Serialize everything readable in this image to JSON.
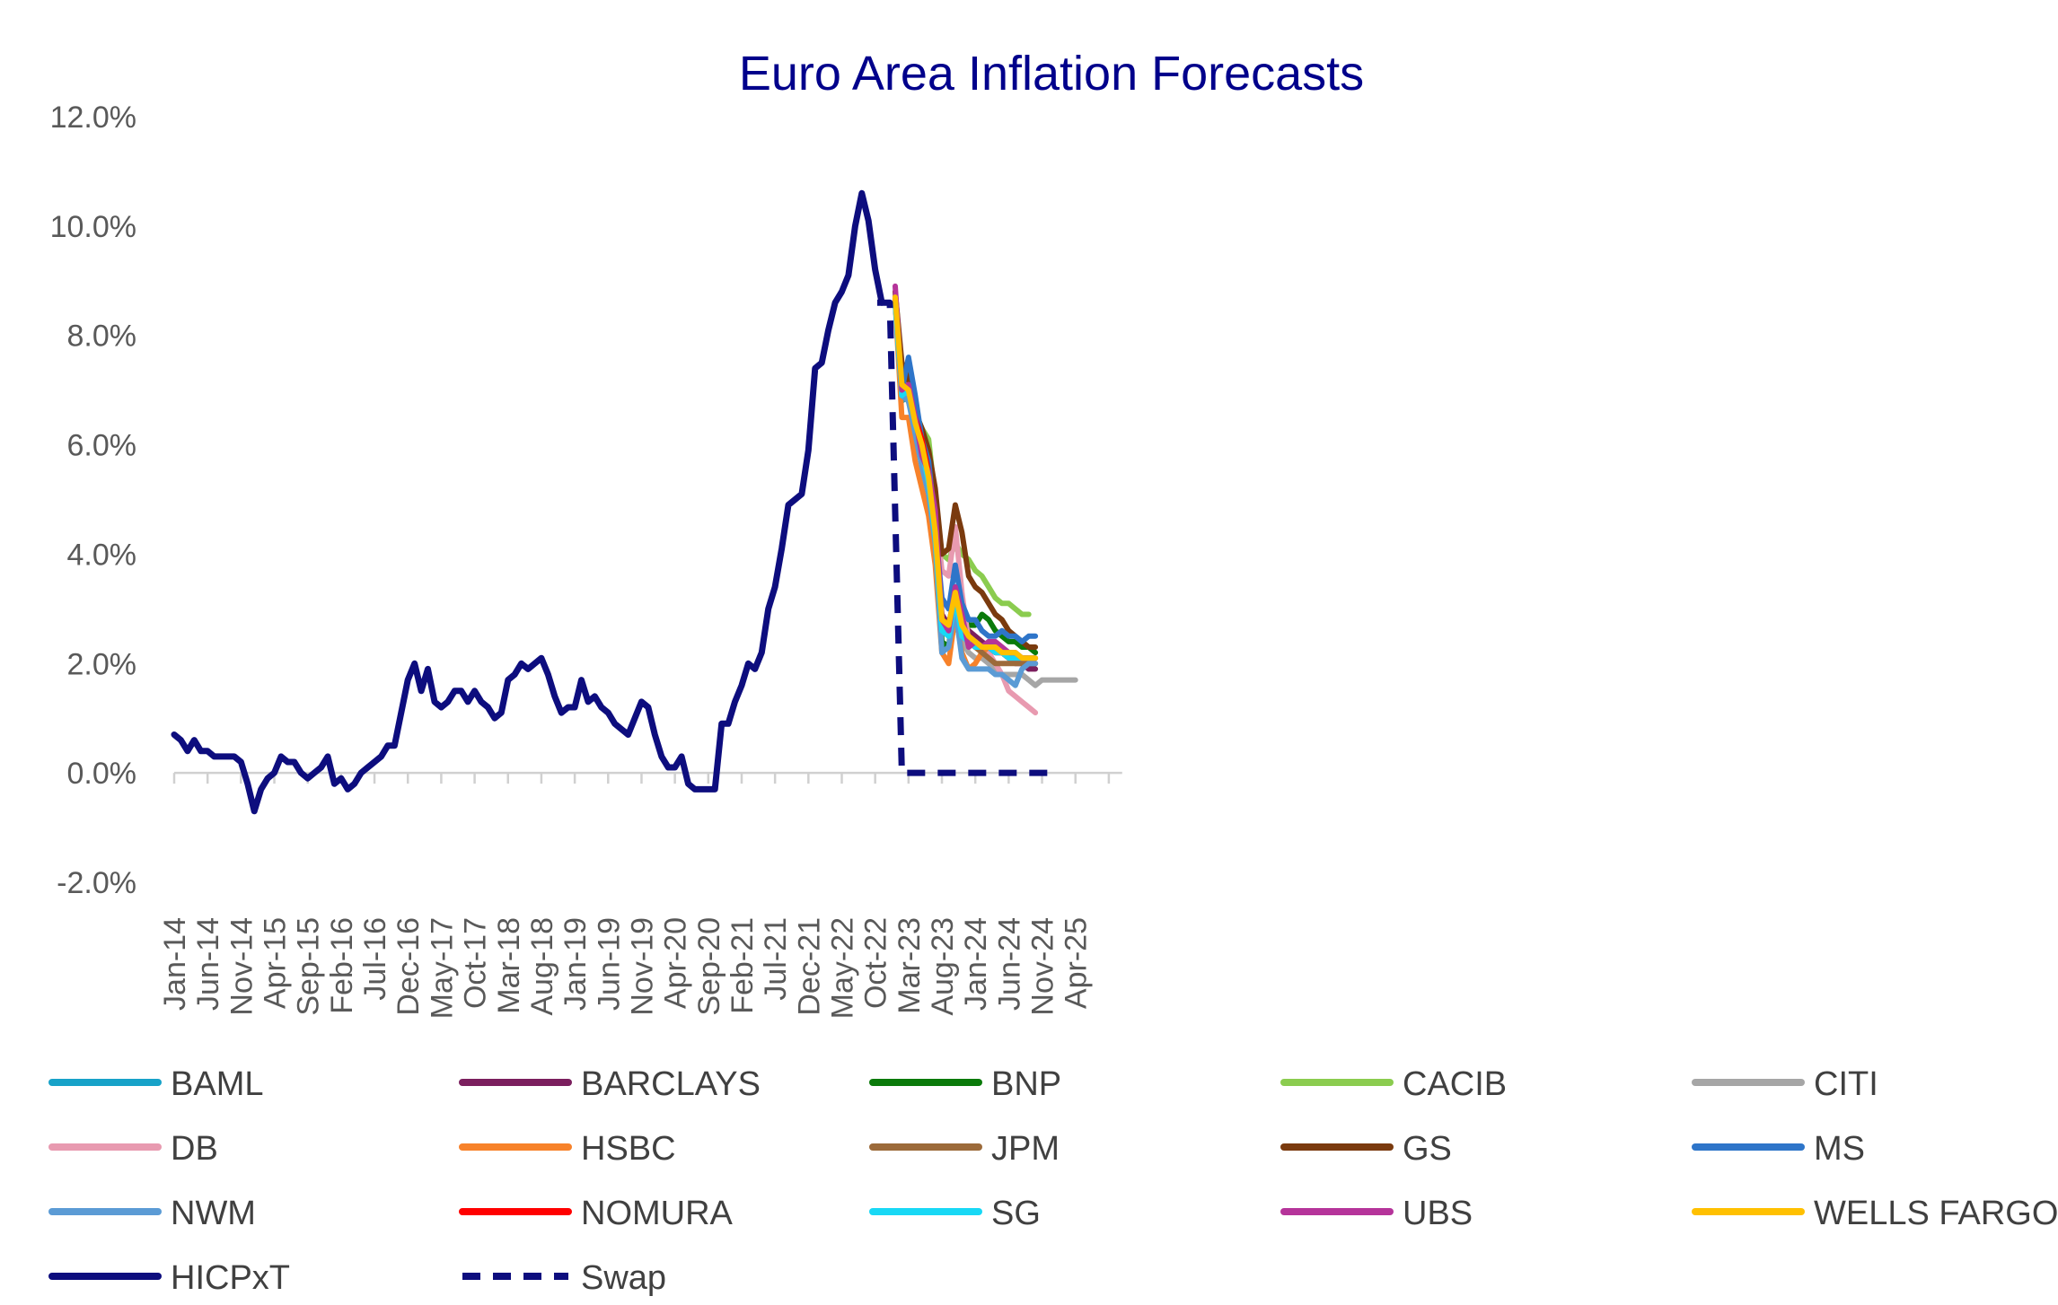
{
  "chart_data": {
    "type": "line",
    "title": "Euro Area Inflation Forecasts",
    "xlabel": "",
    "ylabel": "",
    "ylim": [
      -2.0,
      12.0
    ],
    "ytick_values": [
      -2,
      0,
      2,
      4,
      6,
      8,
      10,
      12
    ],
    "ytick_labels": [
      "-2.0%",
      "0.0%",
      "2.0%",
      "4.0%",
      "6.0%",
      "8.0%",
      "10.0%",
      "12.0%"
    ],
    "x_start": "Jan-14",
    "x_tick_labels": [
      "Jan-14",
      "Jun-14",
      "Nov-14",
      "Apr-15",
      "Sep-15",
      "Feb-16",
      "Jul-16",
      "Dec-16",
      "May-17",
      "Oct-17",
      "Mar-18",
      "Aug-18",
      "Jan-19",
      "Jun-19",
      "Nov-19",
      "Apr-20",
      "Sep-20",
      "Feb-21",
      "Jul-21",
      "Dec-21",
      "May-22",
      "Oct-22",
      "Mar-23",
      "Aug-23",
      "Jan-24",
      "Jun-24",
      "Nov-24",
      "Apr-25"
    ],
    "grid": false,
    "legend_position": "bottom",
    "series": [
      {
        "name": "BAML",
        "color": "#17a2c8",
        "style": "solid",
        "start": "Jan-23",
        "values": [
          8.6,
          6.8,
          6.9,
          6.4,
          5.9,
          5.3,
          4.4,
          2.8,
          2.5,
          3.4,
          2.6,
          2.4,
          2.3,
          2.3,
          2.4,
          2.3,
          2.2,
          2.1,
          2.1,
          2.0,
          1.9,
          2.0
        ]
      },
      {
        "name": "BARCLAYS",
        "color": "#7b1f5e",
        "style": "solid",
        "start": "Jan-23",
        "values": [
          8.7,
          7.1,
          7.0,
          6.4,
          6.0,
          5.4,
          4.3,
          2.9,
          2.7,
          3.3,
          2.7,
          2.6,
          2.5,
          2.4,
          2.3,
          2.2,
          2.2,
          2.1,
          2.0,
          2.0,
          1.9,
          1.9
        ]
      },
      {
        "name": "BNP",
        "color": "#0a7a0a",
        "style": "solid",
        "start": "Jan-23",
        "values": [
          8.6,
          6.9,
          6.8,
          6.3,
          5.8,
          5.3,
          4.2,
          2.4,
          2.3,
          3.2,
          2.8,
          2.7,
          2.7,
          2.9,
          2.8,
          2.6,
          2.5,
          2.4,
          2.4,
          2.3,
          2.3,
          2.2
        ]
      },
      {
        "name": "CACIB",
        "color": "#8bcc4f",
        "style": "solid",
        "start": "Jan-23",
        "values": [
          8.8,
          7.4,
          7.3,
          6.6,
          6.3,
          6.1,
          5.0,
          4.0,
          3.9,
          4.2,
          4.0,
          3.9,
          3.7,
          3.6,
          3.4,
          3.2,
          3.1,
          3.1,
          3.0,
          2.9,
          2.9
        ]
      },
      {
        "name": "CITI",
        "color": "#a6a6a6",
        "style": "solid",
        "start": "Jan-23",
        "values": [
          8.6,
          6.9,
          6.9,
          6.3,
          5.8,
          5.2,
          4.3,
          2.6,
          2.5,
          3.1,
          2.4,
          2.2,
          2.1,
          2.1,
          2.0,
          1.9,
          1.8,
          1.8,
          1.8,
          1.8,
          1.7,
          1.6,
          1.7,
          1.7,
          1.7,
          1.7,
          1.7,
          1.7
        ]
      },
      {
        "name": "DB",
        "color": "#e89ab0",
        "style": "solid",
        "start": "Jan-23",
        "values": [
          8.7,
          7.2,
          7.1,
          6.5,
          6.2,
          5.6,
          4.8,
          3.7,
          3.6,
          4.5,
          3.3,
          2.4,
          2.4,
          2.3,
          2.2,
          2.0,
          1.8,
          1.5,
          1.4,
          1.3,
          1.2,
          1.1
        ]
      },
      {
        "name": "HSBC",
        "color": "#f7822a",
        "style": "solid",
        "start": "Jan-23",
        "values": [
          8.6,
          6.5,
          6.5,
          5.7,
          5.2,
          4.7,
          3.8,
          2.2,
          2.0,
          2.9,
          2.2,
          1.9,
          2.0,
          2.2,
          2.3,
          2.2,
          2.2,
          2.1,
          2.1,
          2.1,
          2.1,
          2.0
        ]
      },
      {
        "name": "JPM",
        "color": "#9c6a3a",
        "style": "solid",
        "start": "Jan-23",
        "values": [
          8.7,
          7.1,
          7.0,
          6.4,
          6.0,
          5.5,
          4.5,
          2.8,
          2.7,
          3.3,
          2.7,
          2.5,
          2.3,
          2.2,
          2.1,
          2.0,
          2.0,
          2.0,
          2.0,
          2.0,
          2.0,
          2.0
        ]
      },
      {
        "name": "GS",
        "color": "#7a3a0e",
        "style": "solid",
        "start": "Jan-23",
        "values": [
          8.8,
          7.5,
          7.2,
          6.6,
          6.3,
          5.9,
          5.2,
          4.0,
          4.1,
          4.9,
          4.4,
          3.6,
          3.4,
          3.3,
          3.1,
          2.9,
          2.8,
          2.6,
          2.5,
          2.4,
          2.3,
          2.3
        ]
      },
      {
        "name": "MS",
        "color": "#2e75c9",
        "style": "solid",
        "start": "Jan-23",
        "values": [
          8.6,
          7.0,
          7.6,
          6.9,
          6.1,
          5.7,
          4.5,
          3.2,
          3.0,
          3.8,
          3.1,
          2.8,
          2.8,
          2.6,
          2.5,
          2.5,
          2.6,
          2.5,
          2.5,
          2.4,
          2.5,
          2.5
        ]
      },
      {
        "name": "NWM",
        "color": "#5b9bd5",
        "style": "solid",
        "start": "Jan-23",
        "values": [
          8.6,
          6.9,
          6.8,
          6.2,
          5.6,
          5.1,
          4.2,
          2.2,
          2.3,
          3.0,
          2.1,
          1.9,
          1.9,
          1.9,
          1.9,
          1.8,
          1.8,
          1.7,
          1.6,
          1.9,
          2.0,
          2.0
        ]
      },
      {
        "name": "NOMURA",
        "color": "#ff0000",
        "style": "solid",
        "start": "Jan-23",
        "values": [
          8.7,
          7.1,
          7.0,
          6.5,
          6.1,
          5.5,
          4.5,
          2.7,
          2.6,
          3.2,
          2.6,
          2.4,
          2.3,
          2.3,
          2.3,
          2.2,
          2.2,
          2.1,
          2.1,
          2.1,
          2.1,
          2.1
        ]
      },
      {
        "name": "SG",
        "color": "#18d8f5",
        "style": "solid",
        "start": "Jan-23",
        "values": [
          8.6,
          6.9,
          7.0,
          6.4,
          5.9,
          5.3,
          4.3,
          2.6,
          2.5,
          3.2,
          2.5,
          2.4,
          2.3,
          2.3,
          2.3,
          2.2,
          2.2,
          2.1,
          2.1,
          2.1,
          2.1,
          2.1
        ]
      },
      {
        "name": "UBS",
        "color": "#b5349a",
        "style": "solid",
        "start": "Jan-23",
        "values": [
          8.9,
          7.0,
          7.1,
          6.5,
          5.8,
          5.5,
          4.8,
          2.8,
          2.6,
          3.4,
          2.9,
          2.3,
          2.4,
          2.3,
          2.4,
          2.4,
          2.3,
          2.2,
          2.2,
          2.1,
          2.1,
          2.1
        ]
      },
      {
        "name": "WELLS FARGO",
        "color": "#ffc000",
        "style": "solid",
        "start": "Jan-23",
        "values": [
          8.7,
          7.1,
          7.0,
          6.4,
          6.0,
          5.4,
          4.4,
          2.8,
          2.7,
          3.3,
          2.7,
          2.5,
          2.4,
          2.3,
          2.3,
          2.3,
          2.2,
          2.2,
          2.2,
          2.1,
          2.1,
          2.1
        ]
      },
      {
        "name": "HICPxT",
        "color": "#0d0d7e",
        "style": "solid",
        "start": "Jan-14",
        "values": [
          0.7,
          0.6,
          0.4,
          0.6,
          0.4,
          0.4,
          0.3,
          0.3,
          0.3,
          0.3,
          0.2,
          -0.2,
          -0.7,
          -0.3,
          -0.1,
          0.0,
          0.3,
          0.2,
          0.2,
          0.0,
          -0.1,
          0.0,
          0.1,
          0.3,
          -0.2,
          -0.1,
          -0.3,
          -0.2,
          0.0,
          0.1,
          0.2,
          0.3,
          0.5,
          0.5,
          1.1,
          1.7,
          2.0,
          1.5,
          1.9,
          1.3,
          1.2,
          1.3,
          1.5,
          1.5,
          1.3,
          1.5,
          1.3,
          1.2,
          1.0,
          1.1,
          1.7,
          1.8,
          2.0,
          1.9,
          2.0,
          2.1,
          1.8,
          1.4,
          1.1,
          1.2,
          1.2,
          1.7,
          1.3,
          1.4,
          1.2,
          1.1,
          0.9,
          0.8,
          0.7,
          1.0,
          1.3,
          1.2,
          0.7,
          0.3,
          0.1,
          0.1,
          0.3,
          -0.2,
          -0.3,
          -0.3,
          -0.3,
          -0.3,
          0.9,
          0.9,
          1.3,
          1.6,
          2.0,
          1.9,
          2.2,
          3.0,
          3.4,
          4.1,
          4.9,
          5.0,
          5.1,
          5.9,
          7.4,
          7.5,
          8.1,
          8.6,
          8.8,
          9.1,
          10.0,
          10.6,
          10.1,
          9.2,
          8.6
        ]
      },
      {
        "name": "Swap",
        "color": "#0d0d7e",
        "style": "dashed",
        "start": "Jan-23",
        "values": [
          8.6,
          0.0,
          0.0,
          0.0,
          0.0,
          0.0,
          0.0,
          0.0,
          0.0,
          0.0,
          0.0,
          0.0,
          0.0,
          0.0,
          0.0,
          0.0,
          0.0,
          0.0,
          0.0,
          0.0,
          0.0,
          0.0,
          0.0,
          0.0,
          0.0
        ]
      }
    ]
  }
}
